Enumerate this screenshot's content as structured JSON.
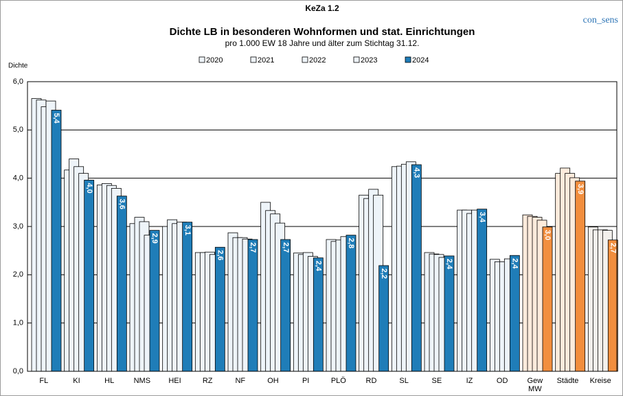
{
  "chart_data": {
    "type": "bar",
    "title": "KeZa 1.2",
    "subtitle": "Dichte LB in besonderen Wohnformen und stat. Einrichtungen",
    "note": "pro 1.000 EW 18 Jahre und älter zum Stichtag 31.12.",
    "brand": "con_sens",
    "y_label": "Dichte",
    "categories": [
      "FL",
      "KI",
      "HL",
      "NMS",
      "HEI",
      "RZ",
      "NF",
      "OH",
      "PI",
      "PLÖ",
      "RD",
      "SL",
      "SE",
      "IZ",
      "OD",
      "Gew\nMW",
      "Städte",
      "Kreise"
    ],
    "series": [
      {
        "name": "2020",
        "colors": [
          "#eef4f9",
          "#eef4f9",
          "#eef4f9",
          "#eef4f9",
          "#eef4f9",
          "#eef4f9",
          "#eef4f9",
          "#eef4f9",
          "#eef4f9",
          "#eef4f9",
          "#eef4f9",
          "#eef4f9",
          "#eef4f9",
          "#eef4f9",
          "#eef4f9",
          "#fdebdc",
          "#fdebdc",
          "#f3f0ec"
        ],
        "values": [
          5.65,
          4.17,
          3.86,
          3.06,
          3.0,
          2.46,
          2.87,
          3.5,
          2.45,
          2.73,
          3.65,
          4.24,
          2.46,
          3.34,
          2.32,
          3.24,
          4.1,
          2.99
        ]
      },
      {
        "name": "2021",
        "colors": [
          "#eef4f9",
          "#eef4f9",
          "#eef4f9",
          "#eef4f9",
          "#eef4f9",
          "#eef4f9",
          "#eef4f9",
          "#eef4f9",
          "#eef4f9",
          "#eef4f9",
          "#eef4f9",
          "#eef4f9",
          "#eef4f9",
          "#eef4f9",
          "#eef4f9",
          "#fdebdc",
          "#fdebdc",
          "#f3f0ec"
        ],
        "values": [
          5.62,
          4.4,
          3.89,
          3.19,
          3.14,
          2.46,
          2.77,
          3.33,
          2.42,
          2.69,
          3.58,
          4.25,
          2.43,
          3.34,
          2.27,
          3.21,
          4.21,
          2.93
        ]
      },
      {
        "name": "2022",
        "colors": [
          "#eef4f9",
          "#eef4f9",
          "#eef4f9",
          "#eef4f9",
          "#eef4f9",
          "#eef4f9",
          "#eef4f9",
          "#eef4f9",
          "#eef4f9",
          "#eef4f9",
          "#eef4f9",
          "#eef4f9",
          "#eef4f9",
          "#eef4f9",
          "#eef4f9",
          "#fdebdc",
          "#fdebdc",
          "#f3f0ec"
        ],
        "values": [
          5.48,
          4.24,
          3.85,
          3.1,
          3.06,
          2.47,
          2.77,
          3.26,
          2.46,
          2.72,
          3.77,
          4.29,
          2.42,
          3.27,
          2.27,
          3.19,
          4.1,
          2.93
        ]
      },
      {
        "name": "2023",
        "colors": [
          "#eef4f9",
          "#eef4f9",
          "#eef4f9",
          "#eef4f9",
          "#eef4f9",
          "#eef4f9",
          "#eef4f9",
          "#eef4f9",
          "#eef4f9",
          "#eef4f9",
          "#eef4f9",
          "#eef4f9",
          "#eef4f9",
          "#eef4f9",
          "#eef4f9",
          "#fdebdc",
          "#fdebdc",
          "#f3f0ec"
        ],
        "values": [
          5.6,
          4.1,
          3.79,
          2.82,
          3.09,
          2.42,
          2.74,
          3.07,
          2.38,
          2.79,
          3.65,
          4.34,
          2.36,
          3.34,
          2.33,
          3.13,
          4.01,
          2.92
        ]
      },
      {
        "name": "2024",
        "colors": [
          "#1f7db8",
          "#1f7db8",
          "#1f7db8",
          "#1f7db8",
          "#1f7db8",
          "#1f7db8",
          "#1f7db8",
          "#1f7db8",
          "#1f7db8",
          "#1f7db8",
          "#1f7db8",
          "#1f7db8",
          "#1f7db8",
          "#1f7db8",
          "#1f7db8",
          "#f28e3e",
          "#f28e3e",
          "#f28e3e"
        ],
        "values": [
          5.41,
          3.96,
          3.63,
          2.92,
          3.09,
          2.57,
          2.73,
          2.73,
          2.35,
          2.82,
          2.19,
          4.28,
          2.39,
          3.36,
          2.4,
          2.99,
          3.94,
          2.72
        ],
        "value_labels": [
          "5,4",
          "4,0",
          "3,6",
          "2,9",
          "3,1",
          "2,6",
          "2,7",
          "2,7",
          "2,4",
          "2,8",
          "2,2",
          "4,3",
          "2,4",
          "3,4",
          "2,4",
          "3,0",
          "3,9",
          "2,7"
        ]
      }
    ],
    "ylim": [
      0,
      6
    ],
    "yticks": [
      {
        "value": 0,
        "label": "0,0"
      },
      {
        "value": 1,
        "label": "1,0"
      },
      {
        "value": 2,
        "label": "2,0"
      },
      {
        "value": 3,
        "label": "3,0"
      },
      {
        "value": 4,
        "label": "4,0"
      },
      {
        "value": 5,
        "label": "5,0"
      },
      {
        "value": 6,
        "label": "6,0"
      }
    ],
    "grid": true
  }
}
